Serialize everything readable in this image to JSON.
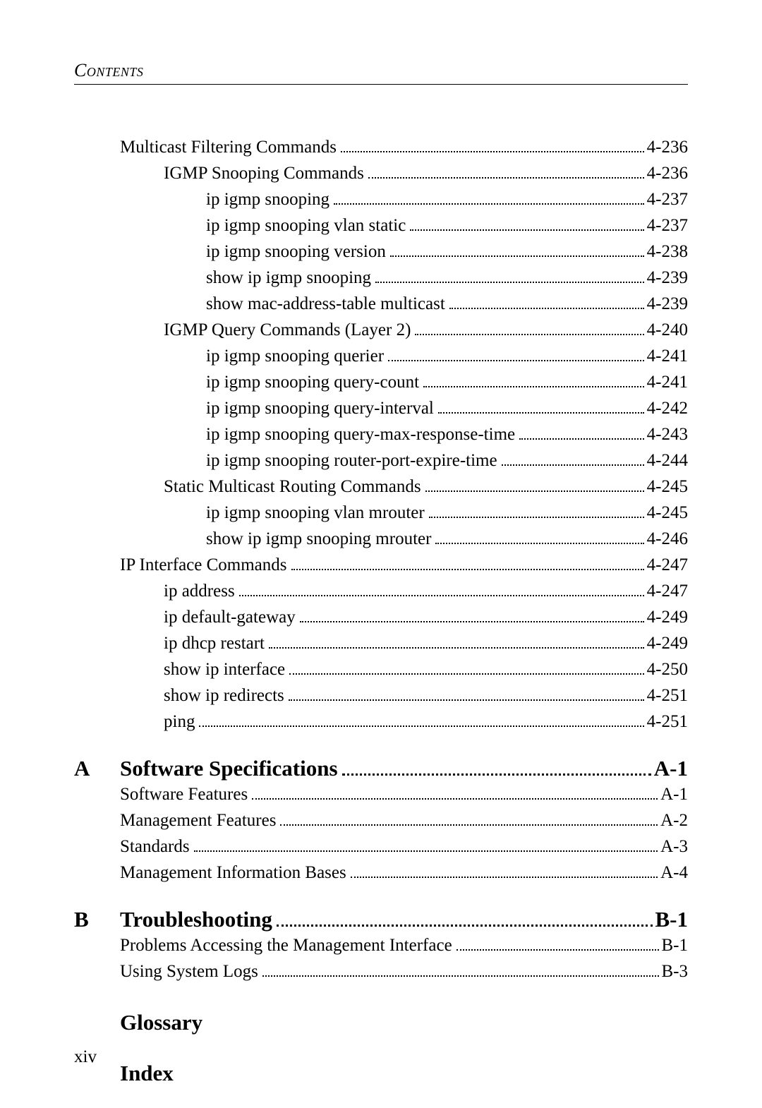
{
  "header": "Contents",
  "page_number": "xiv",
  "entries": [
    {
      "indent": 0,
      "title": "Multicast Filtering Commands",
      "page": "4-236"
    },
    {
      "indent": 1,
      "title": "IGMP Snooping Commands",
      "page": "4-236"
    },
    {
      "indent": 2,
      "title": "ip igmp snooping",
      "page": "4-237"
    },
    {
      "indent": 2,
      "title": "ip igmp snooping vlan static",
      "page": "4-237"
    },
    {
      "indent": 2,
      "title": "ip igmp snooping version",
      "page": "4-238"
    },
    {
      "indent": 2,
      "title": "show ip igmp snooping",
      "page": "4-239"
    },
    {
      "indent": 2,
      "title": "show mac-address-table multicast",
      "page": "4-239"
    },
    {
      "indent": 1,
      "title": "IGMP Query Commands (Layer 2)",
      "page": "4-240"
    },
    {
      "indent": 2,
      "title": "ip igmp snooping querier",
      "page": "4-241"
    },
    {
      "indent": 2,
      "title": "ip igmp snooping query-count",
      "page": "4-241"
    },
    {
      "indent": 2,
      "title": "ip igmp snooping query-interval",
      "page": "4-242"
    },
    {
      "indent": 2,
      "title": "ip igmp snooping query-max-response-time",
      "page": "4-243"
    },
    {
      "indent": 2,
      "title": "ip igmp snooping router-port-expire-time",
      "page": "4-244"
    },
    {
      "indent": 1,
      "title": "Static Multicast Routing Commands",
      "page": "4-245"
    },
    {
      "indent": 2,
      "title": "ip igmp snooping vlan mrouter",
      "page": "4-245"
    },
    {
      "indent": 2,
      "title": "show ip igmp snooping mrouter",
      "page": "4-246"
    },
    {
      "indent": 0,
      "title": "IP Interface Commands",
      "page": "4-247"
    },
    {
      "indent": 1,
      "title": "ip address",
      "page": "4-247"
    },
    {
      "indent": 1,
      "title": "ip default-gateway",
      "page": "4-249"
    },
    {
      "indent": 1,
      "title": "ip dhcp restart",
      "page": "4-249"
    },
    {
      "indent": 1,
      "title": "show ip interface",
      "page": "4-250"
    },
    {
      "indent": 1,
      "title": "show ip redirects",
      "page": "4-251"
    },
    {
      "indent": 1,
      "title": "ping",
      "page": "4-251"
    }
  ],
  "appendices": [
    {
      "letter": "A",
      "title": "Software Specifications",
      "page": "A-1",
      "subs": [
        {
          "title": "Software Features",
          "page": "A-1"
        },
        {
          "title": "Management Features",
          "page": "A-2"
        },
        {
          "title": "Standards",
          "page": "A-3"
        },
        {
          "title": "Management Information Bases",
          "page": "A-4"
        }
      ]
    },
    {
      "letter": "B",
      "title": "Troubleshooting",
      "page": "B-1",
      "subs": [
        {
          "title": "Problems Accessing the Management Interface",
          "page": "B-1"
        },
        {
          "title": "Using System Logs",
          "page": "B-3"
        }
      ]
    }
  ],
  "standalones": [
    "Glossary",
    "Index"
  ]
}
